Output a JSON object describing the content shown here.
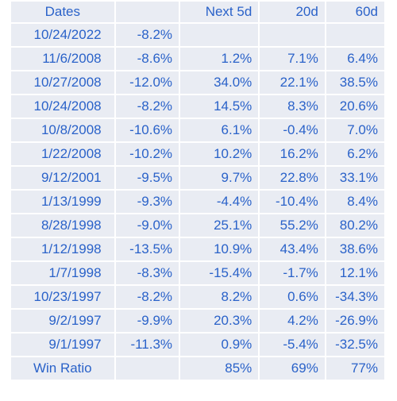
{
  "table": {
    "headers": [
      "Dates",
      "",
      "Next 5d",
      "20d",
      "60d"
    ],
    "rows": [
      [
        "10/24/2022",
        "-8.2%",
        "",
        "",
        ""
      ],
      [
        "11/6/2008",
        "-8.6%",
        "1.2%",
        "7.1%",
        "6.4%"
      ],
      [
        "10/27/2008",
        "-12.0%",
        "34.0%",
        "22.1%",
        "38.5%"
      ],
      [
        "10/24/2008",
        "-8.2%",
        "14.5%",
        "8.3%",
        "20.6%"
      ],
      [
        "10/8/2008",
        "-10.6%",
        "6.1%",
        "-0.4%",
        "7.0%"
      ],
      [
        "1/22/2008",
        "-10.2%",
        "10.2%",
        "16.2%",
        "6.2%"
      ],
      [
        "9/12/2001",
        "-9.5%",
        "9.7%",
        "22.8%",
        "33.1%"
      ],
      [
        "1/13/1999",
        "-9.3%",
        "-4.4%",
        "-10.4%",
        "8.4%"
      ],
      [
        "8/28/1998",
        "-9.0%",
        "25.1%",
        "55.2%",
        "80.2%"
      ],
      [
        "1/12/1998",
        "-13.5%",
        "10.9%",
        "43.4%",
        "38.6%"
      ],
      [
        "1/7/1998",
        "-8.3%",
        "-15.4%",
        "-1.7%",
        "12.1%"
      ],
      [
        "10/23/1997",
        "-8.2%",
        "8.2%",
        "0.6%",
        "-34.3%"
      ],
      [
        "9/2/1997",
        "-9.9%",
        "20.3%",
        "4.2%",
        "-26.9%"
      ],
      [
        "9/1/1997",
        "-11.3%",
        "0.9%",
        "-5.4%",
        "-32.5%"
      ]
    ],
    "footer": [
      "Win Ratio",
      "",
      "85%",
      "69%",
      "77%"
    ]
  },
  "colors": {
    "text": "#2a62c9",
    "cell_background": "#e9ecf3"
  }
}
